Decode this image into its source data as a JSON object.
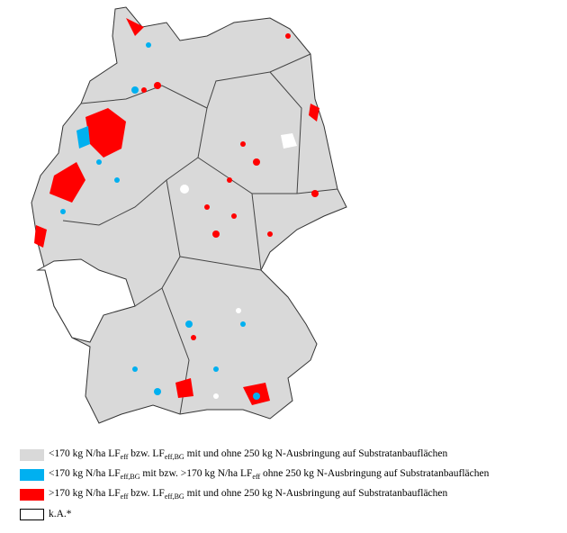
{
  "legend": [
    {
      "parts": [
        "<170 kg N/ha LF",
        "eff",
        " bzw. LF",
        "eff,BG",
        " mit und ohne 250 kg N-Ausbringung auf Substratanbauflächen"
      ]
    },
    {
      "parts": [
        "<170 kg N/ha LF",
        "eff,BG",
        " mit bzw. >170 kg N/ha LF",
        "eff",
        " ohne 250 kg N-Ausbringung auf Substratanbauflächen"
      ]
    },
    {
      "parts": [
        ">170 kg N/ha LF",
        "eff",
        " bzw. LF",
        "eff,BG",
        " mit und ohne 250 kg N-Ausbringung auf Substratanbauflächen"
      ]
    },
    {
      "parts": [
        "k.A.*"
      ]
    }
  ]
}
